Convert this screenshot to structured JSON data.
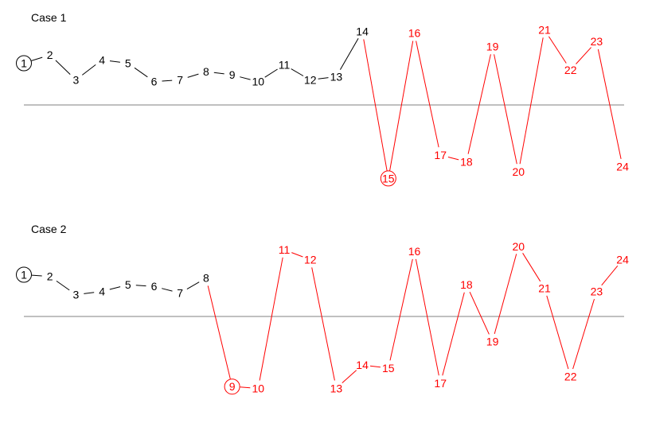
{
  "colors": {
    "black": "#000000",
    "red": "#ff0000",
    "baseline": "#808080"
  },
  "cases": [
    {
      "title": "Case 1",
      "points": [
        {
          "label": "1",
          "level": 2.5,
          "color": "black",
          "circled": true
        },
        {
          "label": "2",
          "level": 3.0,
          "color": "black"
        },
        {
          "label": "3",
          "level": 1.5,
          "color": "black"
        },
        {
          "label": "4",
          "level": 2.7,
          "color": "black"
        },
        {
          "label": "5",
          "level": 2.5,
          "color": "black"
        },
        {
          "label": "6",
          "level": 1.4,
          "color": "black"
        },
        {
          "label": "7",
          "level": 1.5,
          "color": "black"
        },
        {
          "label": "8",
          "level": 2.0,
          "color": "black"
        },
        {
          "label": "9",
          "level": 1.8,
          "color": "black"
        },
        {
          "label": "10",
          "level": 1.4,
          "color": "black"
        },
        {
          "label": "11",
          "level": 2.4,
          "color": "black"
        },
        {
          "label": "12",
          "level": 1.5,
          "color": "black"
        },
        {
          "label": "13",
          "level": 1.7,
          "color": "black"
        },
        {
          "label": "14",
          "level": 4.4,
          "color": "black"
        },
        {
          "label": "15",
          "level": -4.4,
          "color": "red",
          "circled": true
        },
        {
          "label": "16",
          "level": 4.3,
          "color": "red"
        },
        {
          "label": "17",
          "level": -3.0,
          "color": "red"
        },
        {
          "label": "18",
          "level": -3.4,
          "color": "red"
        },
        {
          "label": "19",
          "level": 3.5,
          "color": "red"
        },
        {
          "label": "20",
          "level": -4.0,
          "color": "red"
        },
        {
          "label": "21",
          "level": 4.5,
          "color": "red"
        },
        {
          "label": "22",
          "level": 2.1,
          "color": "red"
        },
        {
          "label": "23",
          "level": 3.8,
          "color": "red"
        },
        {
          "label": "24",
          "level": -3.7,
          "color": "red"
        }
      ]
    },
    {
      "title": "Case 2",
      "points": [
        {
          "label": "1",
          "level": 2.5,
          "color": "black",
          "circled": true
        },
        {
          "label": "2",
          "level": 2.4,
          "color": "black"
        },
        {
          "label": "3",
          "level": 1.3,
          "color": "black"
        },
        {
          "label": "4",
          "level": 1.5,
          "color": "black"
        },
        {
          "label": "5",
          "level": 1.9,
          "color": "black"
        },
        {
          "label": "6",
          "level": 1.8,
          "color": "black"
        },
        {
          "label": "7",
          "level": 1.4,
          "color": "black"
        },
        {
          "label": "8",
          "level": 2.3,
          "color": "black"
        },
        {
          "label": "9",
          "level": -4.2,
          "color": "red",
          "circled": true
        },
        {
          "label": "10",
          "level": -4.3,
          "color": "red"
        },
        {
          "label": "11",
          "level": 4.0,
          "color": "red"
        },
        {
          "label": "12",
          "level": 3.4,
          "color": "red"
        },
        {
          "label": "13",
          "level": -4.3,
          "color": "red"
        },
        {
          "label": "14",
          "level": -2.9,
          "color": "red"
        },
        {
          "label": "15",
          "level": -3.1,
          "color": "red"
        },
        {
          "label": "16",
          "level": 3.9,
          "color": "red"
        },
        {
          "label": "17",
          "level": -4.0,
          "color": "red"
        },
        {
          "label": "18",
          "level": 1.9,
          "color": "red"
        },
        {
          "label": "19",
          "level": -1.5,
          "color": "red"
        },
        {
          "label": "20",
          "level": 4.2,
          "color": "red"
        },
        {
          "label": "21",
          "level": 1.7,
          "color": "red"
        },
        {
          "label": "22",
          "level": -3.6,
          "color": "red"
        },
        {
          "label": "23",
          "level": 1.5,
          "color": "red"
        },
        {
          "label": "24",
          "level": 3.4,
          "color": "red"
        }
      ]
    }
  ]
}
